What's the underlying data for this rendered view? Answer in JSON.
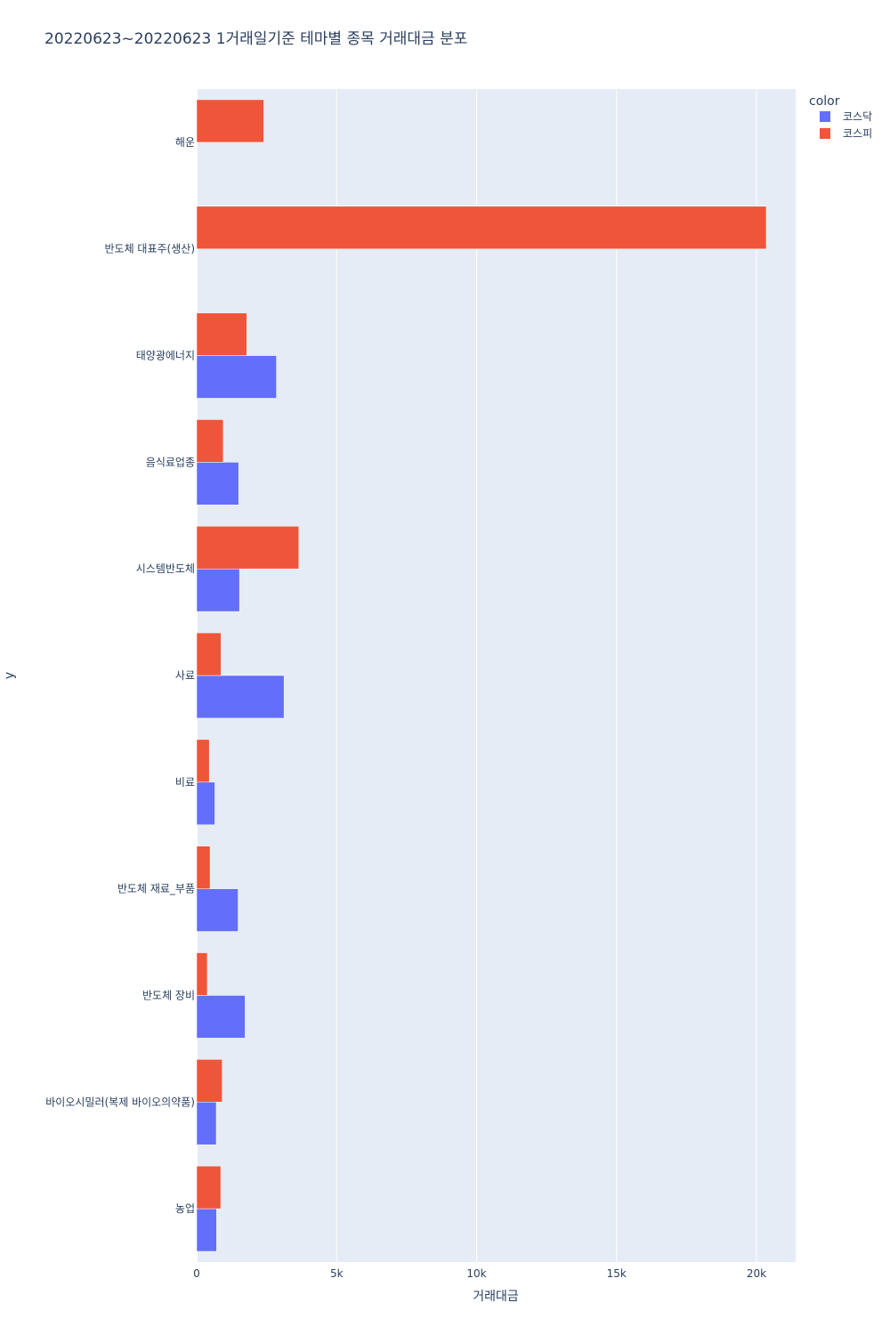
{
  "chart_data": {
    "type": "bar",
    "orientation": "horizontal",
    "barmode": "group",
    "title": "20220623~20220623 1거래일기준 테마별 종목 거래대금 분포",
    "xlabel": "거래대금",
    "ylabel": "y",
    "xlim": [
      0,
      21400
    ],
    "x_ticks": [
      0,
      5000,
      10000,
      15000,
      20000
    ],
    "x_tick_labels": [
      "0",
      "5k",
      "10k",
      "15k",
      "20k"
    ],
    "grid": true,
    "categories": [
      "해운",
      "반도체 대표주(생산)",
      "태양광에너지",
      "음식료업종",
      "시스템반도체",
      "사료",
      "비료",
      "반도체 재료_부품",
      "반도체 장비",
      "바이오시밀러(복제 바이오의약품)",
      "농업"
    ],
    "series": [
      {
        "name": "코스닥",
        "color": "#636efa",
        "values": [
          0,
          0,
          2850,
          1500,
          1530,
          3120,
          650,
          1480,
          1730,
          700,
          710
        ]
      },
      {
        "name": "코스피",
        "color": "#ef553b",
        "values": [
          2400,
          20350,
          1790,
          950,
          3650,
          870,
          450,
          480,
          380,
          910,
          860
        ]
      }
    ],
    "legend": {
      "title": "color",
      "position": "top-right"
    },
    "colors": {
      "plot_background": "#e5ecf6",
      "gridline": "#ffffff",
      "text": "#2a3f5f"
    }
  }
}
